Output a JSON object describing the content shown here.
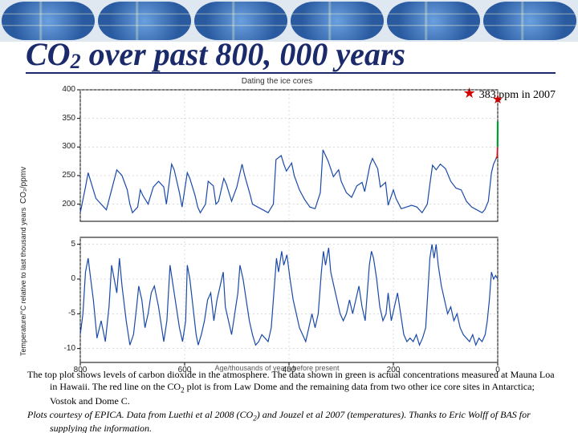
{
  "title": {
    "pre": "CO",
    "sub": "2",
    "post": " over past 800, 000 years"
  },
  "star_note": {
    "symbol": "★",
    "text": "383 ppm in 2007"
  },
  "chart_title": "Dating the ice cores",
  "xaxis": {
    "label": "Age/thousands of years before present",
    "min": 0,
    "max": 800,
    "ticks": [
      800,
      600,
      400,
      200,
      0
    ]
  },
  "top_panel": {
    "ylabel": "CO₂/ppmv",
    "ymin": 170,
    "ymax": 400,
    "yticks": [
      200,
      250,
      300,
      350,
      400
    ],
    "line_color": "#1a4aa8",
    "red_color": "#d01020",
    "green_color": "#00a030",
    "star_color": "#d00000",
    "data": [
      [
        800,
        185
      ],
      [
        790,
        230
      ],
      [
        785,
        255
      ],
      [
        780,
        240
      ],
      [
        770,
        210
      ],
      [
        760,
        200
      ],
      [
        750,
        190
      ],
      [
        740,
        225
      ],
      [
        730,
        260
      ],
      [
        720,
        250
      ],
      [
        710,
        225
      ],
      [
        705,
        200
      ],
      [
        700,
        185
      ],
      [
        690,
        195
      ],
      [
        685,
        225
      ],
      [
        680,
        215
      ],
      [
        670,
        200
      ],
      [
        660,
        230
      ],
      [
        650,
        240
      ],
      [
        640,
        230
      ],
      [
        635,
        200
      ],
      [
        625,
        270
      ],
      [
        620,
        260
      ],
      [
        610,
        220
      ],
      [
        605,
        195
      ],
      [
        595,
        255
      ],
      [
        590,
        245
      ],
      [
        580,
        215
      ],
      [
        575,
        195
      ],
      [
        570,
        185
      ],
      [
        560,
        200
      ],
      [
        555,
        240
      ],
      [
        545,
        232
      ],
      [
        540,
        200
      ],
      [
        535,
        205
      ],
      [
        525,
        245
      ],
      [
        520,
        235
      ],
      [
        510,
        205
      ],
      [
        500,
        230
      ],
      [
        490,
        270
      ],
      [
        485,
        250
      ],
      [
        475,
        218
      ],
      [
        470,
        200
      ],
      [
        460,
        195
      ],
      [
        450,
        190
      ],
      [
        440,
        185
      ],
      [
        430,
        200
      ],
      [
        425,
        278
      ],
      [
        415,
        285
      ],
      [
        410,
        270
      ],
      [
        405,
        258
      ],
      [
        395,
        272
      ],
      [
        390,
        250
      ],
      [
        380,
        225
      ],
      [
        370,
        208
      ],
      [
        360,
        195
      ],
      [
        350,
        192
      ],
      [
        340,
        220
      ],
      [
        335,
        295
      ],
      [
        325,
        275
      ],
      [
        320,
        262
      ],
      [
        315,
        248
      ],
      [
        305,
        260
      ],
      [
        300,
        240
      ],
      [
        290,
        220
      ],
      [
        280,
        212
      ],
      [
        270,
        232
      ],
      [
        260,
        238
      ],
      [
        255,
        222
      ],
      [
        245,
        268
      ],
      [
        240,
        280
      ],
      [
        230,
        262
      ],
      [
        225,
        230
      ],
      [
        215,
        238
      ],
      [
        210,
        198
      ],
      [
        200,
        225
      ],
      [
        195,
        210
      ],
      [
        185,
        192
      ],
      [
        175,
        195
      ],
      [
        165,
        198
      ],
      [
        155,
        195
      ],
      [
        145,
        185
      ],
      [
        135,
        200
      ],
      [
        130,
        235
      ],
      [
        125,
        268
      ],
      [
        118,
        260
      ],
      [
        110,
        270
      ],
      [
        100,
        262
      ],
      [
        90,
        240
      ],
      [
        80,
        228
      ],
      [
        70,
        225
      ],
      [
        60,
        205
      ],
      [
        50,
        195
      ],
      [
        40,
        190
      ],
      [
        30,
        185
      ],
      [
        25,
        190
      ],
      [
        18,
        205
      ],
      [
        12,
        255
      ],
      [
        8,
        270
      ],
      [
        3,
        280
      ],
      [
        1,
        283
      ]
    ],
    "red_tail": [
      [
        3,
        280
      ],
      [
        1,
        283
      ],
      [
        0.3,
        300
      ]
    ],
    "green_tail": [
      [
        0.3,
        300
      ],
      [
        0.05,
        345
      ]
    ],
    "star_point": [
      0,
      383
    ]
  },
  "bottom_panel": {
    "ylabel": "Temperature/°C relative\nto last thousand years",
    "ymin": -12,
    "ymax": 6,
    "yticks": [
      -10,
      -5,
      0,
      5
    ],
    "line_color": "#1a4aa8",
    "data": [
      [
        800,
        -8
      ],
      [
        795,
        -5
      ],
      [
        790,
        1
      ],
      [
        785,
        3
      ],
      [
        780,
        0
      ],
      [
        775,
        -3
      ],
      [
        768,
        -8.5
      ],
      [
        760,
        -6
      ],
      [
        752,
        -9
      ],
      [
        745,
        -4
      ],
      [
        740,
        2
      ],
      [
        735,
        0
      ],
      [
        730,
        -2
      ],
      [
        725,
        3
      ],
      [
        720,
        -1
      ],
      [
        712,
        -6
      ],
      [
        705,
        -9.5
      ],
      [
        698,
        -8
      ],
      [
        692,
        -4
      ],
      [
        688,
        -1
      ],
      [
        682,
        -3
      ],
      [
        676,
        -7
      ],
      [
        670,
        -5
      ],
      [
        664,
        -2
      ],
      [
        658,
        -1
      ],
      [
        650,
        -4
      ],
      [
        644,
        -7
      ],
      [
        640,
        -9
      ],
      [
        634,
        -6
      ],
      [
        628,
        2
      ],
      [
        622,
        -1
      ],
      [
        616,
        -4
      ],
      [
        610,
        -7
      ],
      [
        604,
        -9
      ],
      [
        598,
        -6
      ],
      [
        595,
        2
      ],
      [
        590,
        0
      ],
      [
        584,
        -4
      ],
      [
        578,
        -8
      ],
      [
        574,
        -9.5
      ],
      [
        568,
        -8
      ],
      [
        562,
        -6
      ],
      [
        556,
        -3
      ],
      [
        550,
        -2
      ],
      [
        544,
        -6
      ],
      [
        538,
        -3
      ],
      [
        532,
        -1
      ],
      [
        526,
        1
      ],
      [
        522,
        -4
      ],
      [
        516,
        -6
      ],
      [
        510,
        -8
      ],
      [
        504,
        -5
      ],
      [
        498,
        -2
      ],
      [
        494,
        2
      ],
      [
        488,
        0
      ],
      [
        482,
        -3
      ],
      [
        476,
        -6
      ],
      [
        470,
        -8
      ],
      [
        464,
        -9.5
      ],
      [
        458,
        -9
      ],
      [
        452,
        -8
      ],
      [
        446,
        -8.5
      ],
      [
        440,
        -9
      ],
      [
        434,
        -7
      ],
      [
        428,
        -1
      ],
      [
        424,
        3
      ],
      [
        420,
        1
      ],
      [
        414,
        4
      ],
      [
        410,
        2
      ],
      [
        404,
        3.5
      ],
      [
        398,
        0
      ],
      [
        392,
        -3
      ],
      [
        386,
        -5
      ],
      [
        380,
        -7
      ],
      [
        374,
        -8
      ],
      [
        368,
        -9
      ],
      [
        362,
        -7
      ],
      [
        356,
        -5
      ],
      [
        350,
        -7
      ],
      [
        344,
        -5
      ],
      [
        338,
        1
      ],
      [
        334,
        4
      ],
      [
        330,
        2
      ],
      [
        324,
        4.5
      ],
      [
        320,
        1
      ],
      [
        314,
        -1
      ],
      [
        308,
        -3
      ],
      [
        302,
        -5
      ],
      [
        296,
        -6
      ],
      [
        290,
        -5
      ],
      [
        284,
        -3
      ],
      [
        278,
        -5
      ],
      [
        272,
        -3
      ],
      [
        266,
        -1
      ],
      [
        260,
        -4
      ],
      [
        254,
        -6
      ],
      [
        250,
        -2
      ],
      [
        246,
        2
      ],
      [
        242,
        4
      ],
      [
        238,
        3
      ],
      [
        232,
        0
      ],
      [
        226,
        -4
      ],
      [
        220,
        -6
      ],
      [
        214,
        -5
      ],
      [
        210,
        -2
      ],
      [
        204,
        -6
      ],
      [
        198,
        -4
      ],
      [
        192,
        -2
      ],
      [
        186,
        -5
      ],
      [
        180,
        -8
      ],
      [
        174,
        -9
      ],
      [
        168,
        -8.5
      ],
      [
        162,
        -9
      ],
      [
        156,
        -8
      ],
      [
        150,
        -9.5
      ],
      [
        144,
        -8.5
      ],
      [
        138,
        -7
      ],
      [
        134,
        -2
      ],
      [
        130,
        3
      ],
      [
        126,
        5
      ],
      [
        122,
        3
      ],
      [
        118,
        5
      ],
      [
        114,
        2
      ],
      [
        108,
        -1
      ],
      [
        102,
        -3
      ],
      [
        96,
        -5
      ],
      [
        90,
        -4
      ],
      [
        84,
        -6
      ],
      [
        78,
        -5
      ],
      [
        72,
        -7
      ],
      [
        66,
        -8
      ],
      [
        60,
        -8.5
      ],
      [
        54,
        -9
      ],
      [
        48,
        -8
      ],
      [
        42,
        -9.5
      ],
      [
        36,
        -8.5
      ],
      [
        30,
        -9
      ],
      [
        24,
        -8
      ],
      [
        20,
        -6
      ],
      [
        16,
        -3
      ],
      [
        12,
        1
      ],
      [
        8,
        0
      ],
      [
        4,
        0.5
      ],
      [
        0,
        0
      ]
    ]
  },
  "caption": {
    "p1a": "The top plot shows levels of carbon dioxide in the atmosphere. The data shown in green is actual concentrations measured at Mauna Loa in Hawaii. The red line on the CO",
    "p1sub": "2",
    "p1b": " plot is from Law Dome and the remaining data from two other ice core sites in Antarctica; Vostok and Dome C.",
    "p2a": "Plots courtesy of EPICA. Data from Luethi et al 2008 (CO",
    "p2sub": "2",
    "p2b": ") and Jouzel et al 2007 (temperatures). Thanks to Eric Wolff of BAS for supplying the information."
  },
  "colors": {
    "grid": "#b8b8b8",
    "axis": "#000000",
    "bg": "#ffffff"
  }
}
